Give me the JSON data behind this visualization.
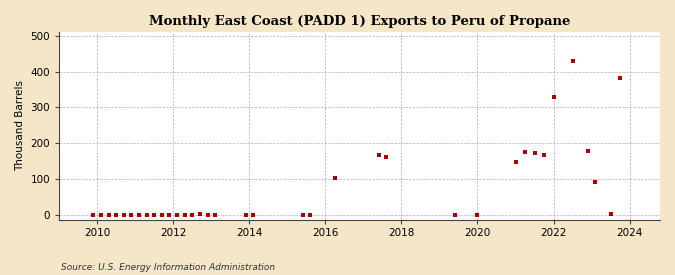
{
  "title": "Monthly East Coast (PADD 1) Exports to Peru of Propane",
  "ylabel": "Thousand Barrels",
  "source": "Source: U.S. Energy Information Administration",
  "background_color": "#f5e6c8",
  "plot_background_color": "#ffffff",
  "marker_color": "#aa0000",
  "marker": "s",
  "marker_size": 3.5,
  "xlim": [
    2009.0,
    2024.8
  ],
  "ylim": [
    -12,
    510
  ],
  "yticks": [
    0,
    100,
    200,
    300,
    400,
    500
  ],
  "xticks": [
    2010,
    2012,
    2014,
    2016,
    2018,
    2020,
    2022,
    2024
  ],
  "data_x": [
    2009.9,
    2010.1,
    2010.3,
    2010.5,
    2010.7,
    2010.9,
    2011.1,
    2011.3,
    2011.5,
    2011.7,
    2011.9,
    2012.1,
    2012.3,
    2012.5,
    2012.7,
    2012.9,
    2013.1,
    2013.9,
    2014.1,
    2015.4,
    2015.6,
    2016.25,
    2017.4,
    2017.6,
    2019.4,
    2020.0,
    2021.0,
    2021.25,
    2021.5,
    2021.75,
    2022.0,
    2022.5,
    2022.9,
    2023.1,
    2023.5,
    2023.75
  ],
  "data_y": [
    1,
    1,
    2,
    1,
    1,
    2,
    1,
    2,
    1,
    2,
    1,
    1,
    1,
    2,
    3,
    2,
    1,
    1,
    1,
    1,
    2,
    103,
    168,
    163,
    2,
    1,
    148,
    175,
    173,
    168,
    330,
    430,
    180,
    93,
    3,
    383
  ]
}
